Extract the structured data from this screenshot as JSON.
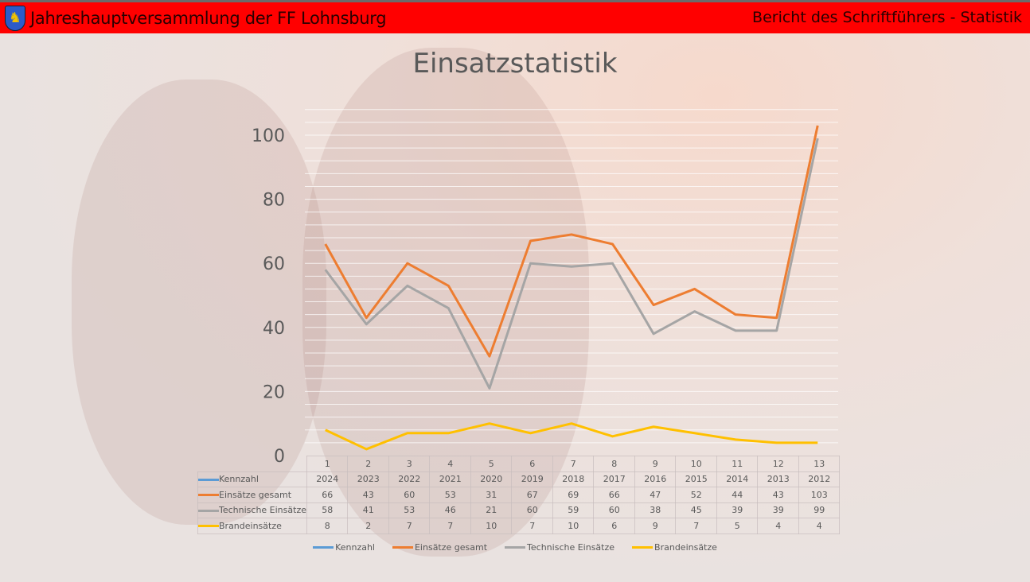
{
  "header": {
    "title": "Jahreshauptversammlung der FF Lohnsburg",
    "right": "Bericht des Schriftführers - Statistik"
  },
  "chart_data": {
    "type": "line",
    "title": "Einsatzstatistik",
    "categories": [
      "1",
      "2",
      "3",
      "4",
      "5",
      "6",
      "7",
      "8",
      "9",
      "10",
      "11",
      "12",
      "13"
    ],
    "ylim": [
      0,
      108
    ],
    "yticks": [
      0,
      20,
      40,
      60,
      80,
      100
    ],
    "grid": true,
    "legend_placement": "bottom",
    "series": [
      {
        "name": "Kennzahl",
        "color": "#5b9bd5",
        "plotted": false,
        "values": [
          2024,
          2023,
          2022,
          2021,
          2020,
          2019,
          2018,
          2017,
          2016,
          2015,
          2014,
          2013,
          2012
        ]
      },
      {
        "name": "Einsätze gesamt",
        "color": "#ed7d31",
        "plotted": true,
        "values": [
          66,
          43,
          60,
          53,
          31,
          67,
          69,
          66,
          47,
          52,
          44,
          43,
          103
        ]
      },
      {
        "name": "Technische Einsätze",
        "color": "#a5a5a5",
        "plotted": true,
        "values": [
          58,
          41,
          53,
          46,
          21,
          60,
          59,
          60,
          38,
          45,
          39,
          39,
          99
        ]
      },
      {
        "name": "Brandeinsätze",
        "color": "#ffc000",
        "plotted": true,
        "values": [
          8,
          2,
          7,
          7,
          10,
          7,
          10,
          6,
          9,
          7,
          5,
          4,
          4
        ]
      }
    ]
  }
}
